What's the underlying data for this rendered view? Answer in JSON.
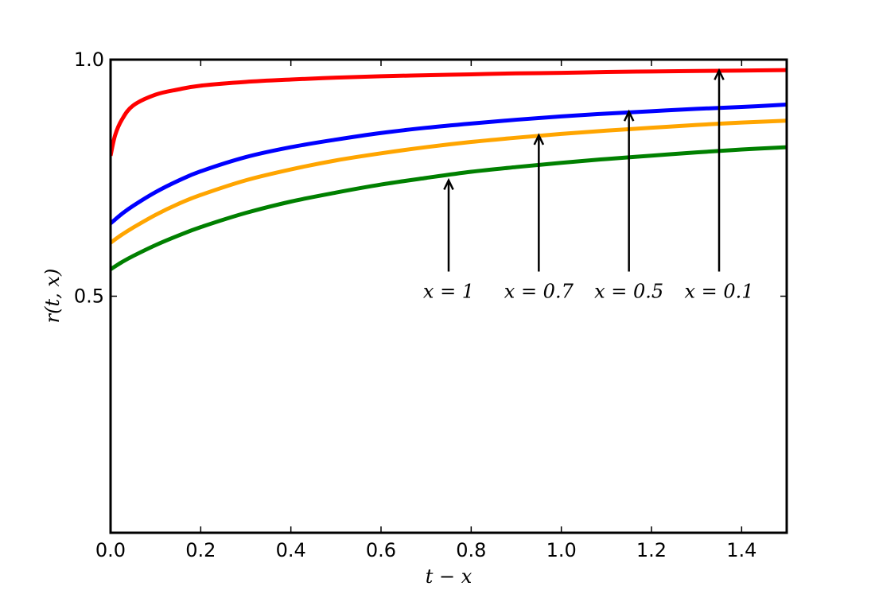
{
  "chart_data": {
    "type": "line",
    "title": "",
    "xlabel": "t − x",
    "ylabel": "r(t, x)",
    "xlim": [
      0.0,
      1.5
    ],
    "ylim": [
      0.0,
      1.0
    ],
    "grid": false,
    "legend": "none",
    "xticks": [
      0.0,
      0.2,
      0.4,
      0.6,
      0.8,
      1.0,
      1.2,
      1.4
    ],
    "xtick_labels": [
      "0.0",
      "0.2",
      "0.4",
      "0.6",
      "0.8",
      "1.0",
      "1.2",
      "1.4"
    ],
    "yticks": [
      0.5,
      1.0
    ],
    "ytick_labels": [
      "0.5",
      "1.0"
    ],
    "x": [
      0.0,
      0.01,
      0.025,
      0.05,
      0.1,
      0.15,
      0.2,
      0.3,
      0.4,
      0.5,
      0.6,
      0.7,
      0.8,
      0.9,
      1.0,
      1.1,
      1.2,
      1.3,
      1.4,
      1.5
    ],
    "series": [
      {
        "color": "#ff0000",
        "values": [
          0.797,
          0.84,
          0.873,
          0.903,
          0.926,
          0.937,
          0.945,
          0.953,
          0.958,
          0.962,
          0.965,
          0.967,
          0.969,
          0.971,
          0.972,
          0.974,
          0.975,
          0.976,
          0.977,
          0.978
        ]
      },
      {
        "color": "#0000ff",
        "values": [
          0.654,
          0.662,
          0.674,
          0.691,
          0.72,
          0.744,
          0.764,
          0.794,
          0.815,
          0.831,
          0.845,
          0.856,
          0.865,
          0.873,
          0.88,
          0.886,
          0.891,
          0.896,
          0.9,
          0.905
        ]
      },
      {
        "color": "#ffa500",
        "values": [
          0.613,
          0.62,
          0.63,
          0.645,
          0.672,
          0.695,
          0.714,
          0.745,
          0.768,
          0.787,
          0.802,
          0.815,
          0.826,
          0.835,
          0.843,
          0.85,
          0.856,
          0.862,
          0.867,
          0.871
        ]
      },
      {
        "color": "#008000",
        "values": [
          0.557,
          0.563,
          0.572,
          0.585,
          0.608,
          0.628,
          0.646,
          0.676,
          0.7,
          0.719,
          0.736,
          0.75,
          0.763,
          0.773,
          0.782,
          0.79,
          0.797,
          0.804,
          0.81,
          0.815
        ]
      }
    ],
    "annotations": [
      {
        "text": "x = 1",
        "point": [
          0.75,
          0.745
        ],
        "text_pos": [
          0.75,
          0.51
        ]
      },
      {
        "text": "x = 0.7",
        "point": [
          0.95,
          0.84
        ],
        "text_pos": [
          0.95,
          0.51
        ]
      },
      {
        "text": "x = 0.5",
        "point": [
          1.15,
          0.89
        ],
        "text_pos": [
          1.15,
          0.51
        ]
      },
      {
        "text": "x = 0.1",
        "point": [
          1.35,
          0.977
        ],
        "text_pos": [
          1.35,
          0.51
        ]
      }
    ]
  }
}
